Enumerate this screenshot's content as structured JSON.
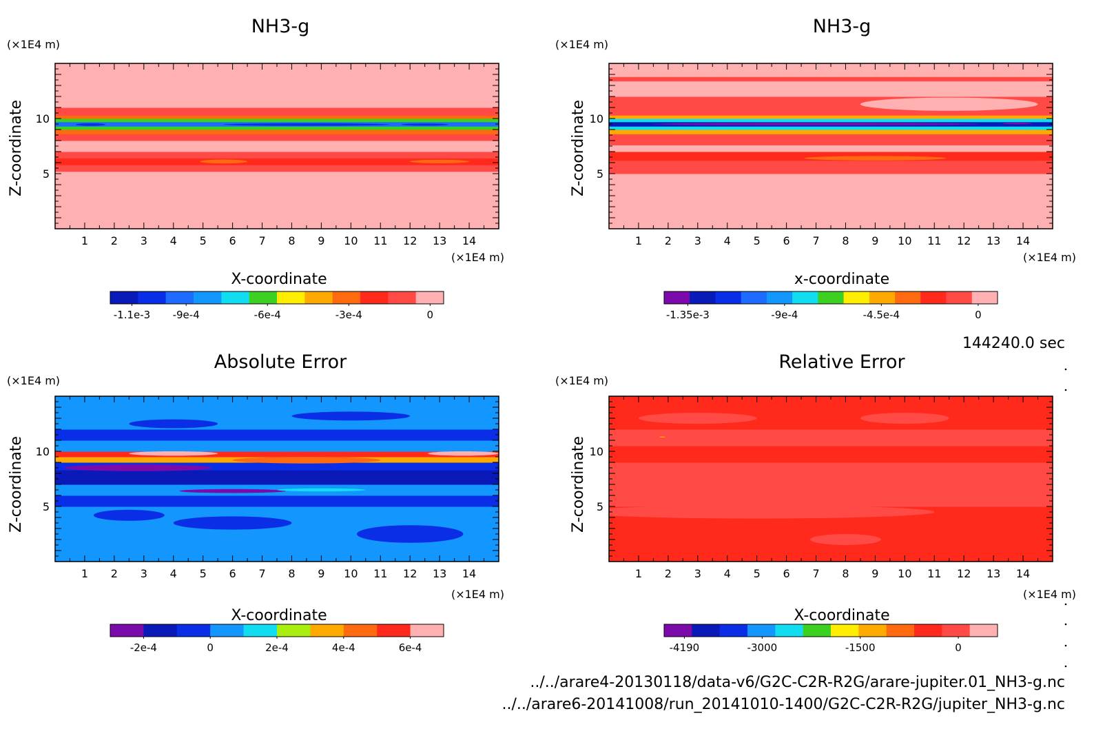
{
  "panels": [
    {
      "title": "NH3-g",
      "yunit": "(×1E4 m)",
      "xunit": "(×1E4 m)",
      "ylabel": "Z-coordinate",
      "xlabel": "X-coordinate",
      "field": "nh3_a",
      "colorbar": {
        "colors": [
          "#0a1ab8",
          "#0a2ee6",
          "#1e6bff",
          "#1496ff",
          "#12dcf0",
          "#3cd020",
          "#ffee00",
          "#ffaa00",
          "#ff6a10",
          "#ff2a1c",
          "#ff4a46",
          "#ffb0b0"
        ],
        "labels": [
          "-1.1e-3",
          "-9e-4",
          "-6e-4",
          "-3e-4",
          "0"
        ],
        "label_values": [
          -0.0011,
          -0.0009,
          -0.0006,
          -0.0003,
          0
        ],
        "range": [
          -0.00118,
          5e-05
        ]
      }
    },
    {
      "title": "NH3-g",
      "yunit": "(×1E4 m)",
      "xunit": "(×1E4 m)",
      "ylabel": "Z-coordinate",
      "xlabel": "x-coordinate",
      "field": "nh3_b",
      "colorbar": {
        "colors": [
          "#7a0aaa",
          "#0a1ab8",
          "#0a2ee6",
          "#1e6bff",
          "#1496ff",
          "#12dcf0",
          "#3cd020",
          "#ffee00",
          "#ffaa00",
          "#ff6a10",
          "#ff2a1c",
          "#ff4a46",
          "#ffb0b0"
        ],
        "labels": [
          "-1.35e-3",
          "-9e-4",
          "-4.5e-4",
          "0"
        ],
        "label_values": [
          -0.00135,
          -0.0009,
          -0.00045,
          0
        ],
        "range": [
          -0.00146,
          9e-05
        ]
      }
    },
    {
      "title": "Absolute Error",
      "yunit": "(×1E4 m)",
      "xunit": "(×1E4 m)",
      "ylabel": "Z-coordinate",
      "xlabel": "X-coordinate",
      "field": "abs_err",
      "colorbar": {
        "colors": [
          "#7a0aaa",
          "#0a1ab8",
          "#0a2ee6",
          "#1496ff",
          "#12dcf0",
          "#aaee10",
          "#ffaa00",
          "#ff6a10",
          "#ff2a1c",
          "#ffb0b0"
        ],
        "labels": [
          "-2e-4",
          "0",
          "2e-4",
          "4e-4",
          "6e-4"
        ],
        "label_values": [
          -0.0002,
          0,
          0.0002,
          0.0004,
          0.0006
        ],
        "range": [
          -0.0003,
          0.0007
        ]
      }
    },
    {
      "title": "Relative Error",
      "yunit": "(×1E4 m)",
      "xunit": "(×1E4 m)",
      "ylabel": "Z-coordinate",
      "xlabel": "X-coordinate",
      "field": "rel_err",
      "colorbar": {
        "colors": [
          "#7a0aaa",
          "#0a1ab8",
          "#0a2ee6",
          "#1496ff",
          "#12dcf0",
          "#3cd020",
          "#ffee00",
          "#ffaa00",
          "#ff6a10",
          "#ff2a1c",
          "#ff4a46",
          "#ffb0b0"
        ],
        "labels": [
          "-4190",
          "-3000",
          "-1500",
          "0"
        ],
        "label_values": [
          -4190,
          -3000,
          -1500,
          0
        ],
        "range": [
          -4500,
          600
        ]
      }
    }
  ],
  "time_label": "144240.0 sec",
  "footnote_lines": [
    "../../arare4-20130118/data-v6/G2C-C2R-R2G/arare-jupiter.01_NH3-g.nc",
    "../../arare6-20141008/run_20141010-1400/G2C-C2R-R2G/jupiter_NH3-g.nc"
  ],
  "chart_data": [
    {
      "type": "heatmap",
      "title": "NH3-g",
      "xlabel": "X-coordinate",
      "ylabel": "Z-coordinate",
      "xlim": [
        0,
        15
      ],
      "ylim": [
        0,
        15
      ],
      "x_ticks": [
        "1",
        "2",
        "3",
        "4",
        "5",
        "6",
        "7",
        "8",
        "9",
        "10",
        "11",
        "12",
        "13",
        "14"
      ],
      "y_ticks": [
        "5",
        "10"
      ],
      "x_tick_values": [
        1,
        2,
        3,
        4,
        5,
        6,
        7,
        8,
        9,
        10,
        11,
        12,
        13,
        14
      ],
      "y_tick_values": [
        5,
        10
      ],
      "bands": [
        {
          "z": [
            0.0,
            5.2
          ],
          "value": 2e-05
        },
        {
          "z": [
            5.2,
            5.8
          ],
          "value": -0.0001
        },
        {
          "z": [
            5.8,
            6.4
          ],
          "value": -0.00022
        },
        {
          "z": [
            6.4,
            7.0
          ],
          "value": -0.0001
        },
        {
          "z": [
            7.0,
            8.0
          ],
          "value": -5e-05
        },
        {
          "z": [
            8.0,
            8.6
          ],
          "value": -0.00015
        },
        {
          "z": [
            8.6,
            9.0
          ],
          "value": -0.0003
        },
        {
          "z": [
            9.0,
            9.3
          ],
          "value": -0.0006
        },
        {
          "z": [
            9.3,
            9.7
          ],
          "value": -0.0009
        },
        {
          "z": [
            9.7,
            10.0
          ],
          "value": -0.0006
        },
        {
          "z": [
            10.0,
            10.3
          ],
          "value": -0.0003
        },
        {
          "z": [
            10.3,
            11.0
          ],
          "value": -0.0001
        },
        {
          "z": [
            11.0,
            12.0
          ],
          "value": -5e-05
        },
        {
          "z": [
            12.0,
            13.0
          ],
          "value": 2e-05
        },
        {
          "z": [
            13.0,
            13.5
          ],
          "value": -5e-05
        },
        {
          "z": [
            13.5,
            15.0
          ],
          "value": 2e-05
        }
      ]
    },
    {
      "type": "heatmap",
      "title": "NH3-g",
      "xlabel": "x-coordinate",
      "ylabel": "Z-coordinate",
      "xlim": [
        0,
        15
      ],
      "ylim": [
        0,
        15
      ],
      "x_ticks": [
        "1",
        "2",
        "3",
        "4",
        "5",
        "6",
        "7",
        "8",
        "9",
        "10",
        "11",
        "12",
        "13",
        "14"
      ],
      "y_ticks": [
        "5",
        "10"
      ],
      "x_tick_values": [
        1,
        2,
        3,
        4,
        5,
        6,
        7,
        8,
        9,
        10,
        11,
        12,
        13,
        14
      ],
      "y_tick_values": [
        5,
        10
      ],
      "bands": [
        {
          "z": [
            0.0,
            5.0
          ],
          "value": 5e-05
        },
        {
          "z": [
            5.0,
            6.2
          ],
          "value": -6e-05
        },
        {
          "z": [
            6.2,
            7.0
          ],
          "value": -0.0002
        },
        {
          "z": [
            7.0,
            7.6
          ],
          "value": 5e-05
        },
        {
          "z": [
            7.6,
            8.6
          ],
          "value": -6e-05
        },
        {
          "z": [
            8.6,
            9.0
          ],
          "value": -0.0004
        },
        {
          "z": [
            9.0,
            9.3
          ],
          "value": -0.0008
        },
        {
          "z": [
            9.3,
            9.7
          ],
          "value": -0.0013
        },
        {
          "z": [
            9.7,
            10.0
          ],
          "value": -0.0008
        },
        {
          "z": [
            10.0,
            10.3
          ],
          "value": -0.0004
        },
        {
          "z": [
            10.3,
            12.0
          ],
          "value": -6e-05
        },
        {
          "z": [
            12.0,
            13.4
          ],
          "value": 5e-05
        },
        {
          "z": [
            13.4,
            13.8
          ],
          "value": -6e-05
        },
        {
          "z": [
            13.8,
            15.0
          ],
          "value": 5e-05
        }
      ]
    },
    {
      "type": "heatmap",
      "title": "Absolute Error",
      "xlabel": "X-coordinate",
      "ylabel": "Z-coordinate",
      "xlim": [
        0,
        15
      ],
      "ylim": [
        0,
        15
      ],
      "x_ticks": [
        "1",
        "2",
        "3",
        "4",
        "5",
        "6",
        "7",
        "8",
        "9",
        "10",
        "11",
        "12",
        "13",
        "14"
      ],
      "y_ticks": [
        "5",
        "10"
      ],
      "x_tick_values": [
        1,
        2,
        3,
        4,
        5,
        6,
        7,
        8,
        9,
        10,
        11,
        12,
        13,
        14
      ],
      "y_tick_values": [
        5,
        10
      ],
      "bands": [
        {
          "z": [
            0.0,
            5.0
          ],
          "value": 5e-05
        },
        {
          "z": [
            5.0,
            6.0
          ],
          "value": -5e-05
        },
        {
          "z": [
            6.0,
            7.0
          ],
          "value": 5e-05
        },
        {
          "z": [
            7.0,
            8.3
          ],
          "value": -0.00015
        },
        {
          "z": [
            8.3,
            9.0
          ],
          "value": -5e-05
        },
        {
          "z": [
            9.0,
            9.5
          ],
          "value": 0.00035
        },
        {
          "z": [
            9.5,
            10.0
          ],
          "value": 0.00055
        },
        {
          "z": [
            10.0,
            11.0
          ],
          "value": 5e-05
        },
        {
          "z": [
            11.0,
            12.0
          ],
          "value": -5e-05
        },
        {
          "z": [
            12.0,
            15.0
          ],
          "value": 5e-05
        }
      ]
    },
    {
      "type": "heatmap",
      "title": "Relative Error",
      "xlabel": "X-coordinate",
      "ylabel": "Z-coordinate",
      "xlim": [
        0,
        15
      ],
      "ylim": [
        0,
        15
      ],
      "x_ticks": [
        "1",
        "2",
        "3",
        "4",
        "5",
        "6",
        "7",
        "8",
        "9",
        "10",
        "11",
        "12",
        "13",
        "14"
      ],
      "y_ticks": [
        "5",
        "10"
      ],
      "x_tick_values": [
        1,
        2,
        3,
        4,
        5,
        6,
        7,
        8,
        9,
        10,
        11,
        12,
        13,
        14
      ],
      "y_tick_values": [
        5,
        10
      ],
      "bands": [
        {
          "z": [
            0.0,
            5.0
          ],
          "value": -300
        },
        {
          "z": [
            5.0,
            9.0
          ],
          "value": 100
        },
        {
          "z": [
            9.0,
            10.5
          ],
          "value": -300
        },
        {
          "z": [
            10.5,
            12.0
          ],
          "value": 100
        },
        {
          "z": [
            12.0,
            15.0
          ],
          "value": -300
        }
      ]
    }
  ]
}
